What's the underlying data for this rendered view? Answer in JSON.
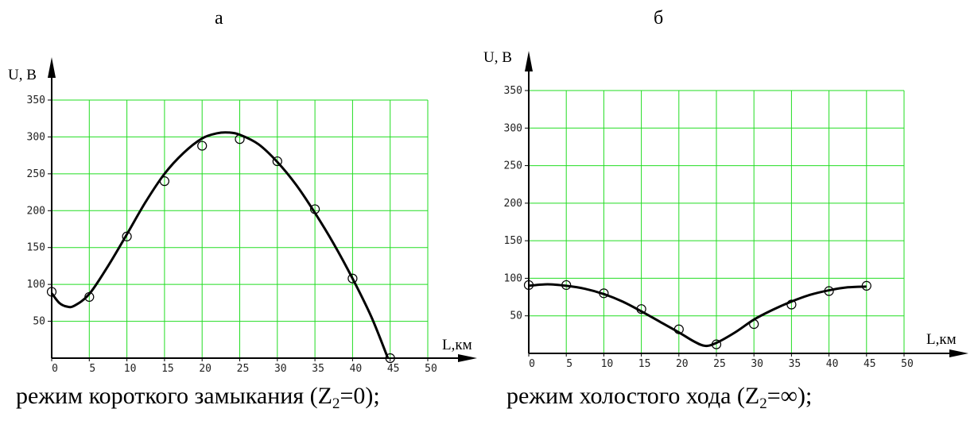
{
  "chart_data": [
    {
      "type": "line",
      "panel_label": "а",
      "caption_prefix": "режим короткого замыкания (Z",
      "caption_sub": "2",
      "caption_suffix": "=0);",
      "xlabel": "L,км",
      "ylabel": "U, В",
      "xlim": [
        0,
        50
      ],
      "ylim": [
        0,
        350
      ],
      "xticks": [
        0,
        5,
        10,
        15,
        20,
        25,
        30,
        35,
        40,
        45,
        50
      ],
      "yticks": [
        50,
        100,
        150,
        200,
        250,
        300,
        350
      ],
      "grid": true,
      "points": {
        "x": [
          0,
          5,
          10,
          15,
          20,
          25,
          30,
          35,
          40,
          45
        ],
        "y": [
          90,
          83,
          165,
          240,
          288,
          297,
          267,
          202,
          108,
          0
        ]
      },
      "curve": {
        "x": [
          0,
          1,
          2,
          3,
          5,
          7.5,
          10,
          12.5,
          15,
          17.5,
          20,
          22,
          23.5,
          25,
          27.5,
          30,
          32.5,
          35,
          37.5,
          40,
          42.5,
          44.7
        ],
        "y": [
          88,
          75,
          70,
          71,
          87,
          125,
          168,
          212,
          250,
          278,
          298,
          305,
          306,
          303,
          290,
          266,
          235,
          197,
          155,
          108,
          56,
          0
        ]
      }
    },
    {
      "type": "line",
      "panel_label": "б",
      "caption_prefix": "режим холостого хода (Z",
      "caption_sub": "2",
      "caption_suffix": "=∞);",
      "xlabel": "L,км",
      "ylabel": "U, В",
      "xlim": [
        0,
        50
      ],
      "ylim": [
        0,
        350
      ],
      "xticks": [
        0,
        5,
        10,
        15,
        20,
        25,
        30,
        35,
        40,
        45,
        50
      ],
      "yticks": [
        50,
        100,
        150,
        200,
        250,
        300,
        350
      ],
      "grid": true,
      "points": {
        "x": [
          0,
          5,
          10,
          15,
          20,
          25,
          30,
          35,
          40,
          45
        ],
        "y": [
          91,
          91,
          80,
          59,
          32,
          12,
          39,
          65,
          83,
          90
        ]
      },
      "curve": {
        "x": [
          0,
          2.5,
          5,
          7.5,
          10,
          12.5,
          15,
          17.5,
          20,
          22,
          23.5,
          25,
          27.5,
          30,
          32.5,
          35,
          37.5,
          40,
          42.5,
          45
        ],
        "y": [
          90,
          92,
          90,
          86,
          79,
          69,
          56,
          42,
          28,
          16,
          10,
          14,
          28,
          45,
          58,
          69,
          78,
          84,
          88,
          89
        ]
      }
    }
  ]
}
